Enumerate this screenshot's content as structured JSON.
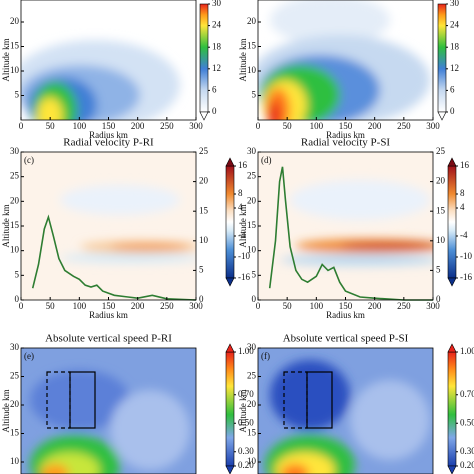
{
  "chart_data": [
    {
      "type": "contour",
      "xlabel": "Radius km",
      "ylabel": "Altitude km",
      "xlim": [
        0,
        300
      ],
      "xticks": [
        0,
        50,
        100,
        150,
        200,
        250,
        300
      ],
      "ylim": [
        0,
        25
      ],
      "yticks": [
        5,
        10,
        15,
        20
      ],
      "colorbar_ticks": [
        0,
        6,
        12,
        18,
        24,
        30
      ]
    },
    {
      "type": "contour",
      "xlabel": "Radius km",
      "ylabel": "Altitude km",
      "xlim": [
        0,
        300
      ],
      "xticks": [
        0,
        50,
        100,
        150,
        200,
        250,
        300
      ],
      "ylim": [
        0,
        25
      ],
      "yticks": [
        5,
        10,
        15,
        20
      ],
      "colorbar_ticks": [
        0,
        6,
        12,
        18,
        24,
        30
      ]
    },
    {
      "type": "contour",
      "panel_label": "(c)",
      "title": "Radial velocity P-RI",
      "xlabel": "Radius km",
      "ylabel": "Altitude km",
      "xlim": [
        0,
        300
      ],
      "xticks": [
        0,
        50,
        100,
        150,
        200,
        250,
        300
      ],
      "ylim": [
        0,
        30
      ],
      "yticks": [
        0,
        5,
        10,
        15,
        20,
        25,
        30
      ],
      "y2lim": [
        0,
        25
      ],
      "y2ticks": [
        0,
        5,
        10,
        15,
        20,
        25
      ],
      "colorbar_ticks": [
        -16,
        -10,
        -4,
        4,
        8,
        16
      ],
      "series": [
        {
          "color": "#2e7d32",
          "axis": "y2",
          "x": [
            20,
            30,
            40,
            47,
            55,
            65,
            75,
            90,
            100,
            110,
            120,
            130,
            140,
            160,
            200,
            225,
            250,
            300
          ],
          "values": [
            2,
            6,
            12,
            14,
            11,
            7,
            5,
            4,
            3.5,
            2.5,
            2.2,
            2.5,
            1.5,
            0.8,
            0.3,
            0.8,
            0.2,
            0
          ]
        }
      ]
    },
    {
      "type": "contour",
      "panel_label": "(d)",
      "title": "Radial velocity P-SI",
      "xlabel": "Radius km",
      "ylabel": "Altitude km",
      "xlim": [
        0,
        300
      ],
      "xticks": [
        0,
        50,
        100,
        150,
        200,
        250,
        300
      ],
      "ylim": [
        0,
        30
      ],
      "yticks": [
        0,
        5,
        10,
        15,
        20,
        25,
        30
      ],
      "y2lim": [
        0,
        25
      ],
      "y2ticks": [
        0,
        5,
        10,
        15,
        20,
        25
      ],
      "colorbar_ticks": [
        -16,
        -10,
        -4,
        4,
        8,
        16
      ],
      "series": [
        {
          "color": "#2e7d32",
          "axis": "y2",
          "x": [
            20,
            30,
            37,
            42,
            47,
            55,
            65,
            75,
            85,
            100,
            110,
            120,
            130,
            140,
            150,
            175,
            200,
            250,
            300
          ],
          "values": [
            2,
            10,
            20,
            22.5,
            17,
            9,
            5,
            3.5,
            3,
            4,
            6,
            5,
            5.5,
            3,
            1.5,
            0.5,
            0.3,
            0,
            0
          ]
        }
      ]
    },
    {
      "type": "contour",
      "panel_label": "(e)",
      "title": "Absolute vertical speed P-RI",
      "ylabel": "Altitude km",
      "ylim": [
        0,
        30
      ],
      "yticks": [
        10,
        15,
        20,
        25,
        30
      ],
      "colorbar_ticks": [
        {
          "value": 0.2,
          "label": "0.20"
        },
        {
          "value": 0.3,
          "label": "0.30"
        },
        {
          "value": 0.5,
          "label": "0.50"
        },
        {
          "value": 0.7,
          "label": "0.70"
        },
        {
          "value": 1.0,
          "label": "1.00"
        }
      ]
    },
    {
      "type": "contour",
      "panel_label": "(f)",
      "title": "Absolute vertical speed P-SI",
      "ylabel": "Altitude km",
      "ylim": [
        0,
        30
      ],
      "yticks": [
        10,
        15,
        20,
        25,
        30
      ],
      "colorbar_ticks": [
        {
          "value": 0.2,
          "label": "0.20"
        },
        {
          "value": 0.3,
          "label": "0.30"
        },
        {
          "value": 0.5,
          "label": "0.50"
        },
        {
          "value": 0.7,
          "label": "0.70"
        },
        {
          "value": 1.0,
          "label": "1.00"
        }
      ]
    }
  ]
}
